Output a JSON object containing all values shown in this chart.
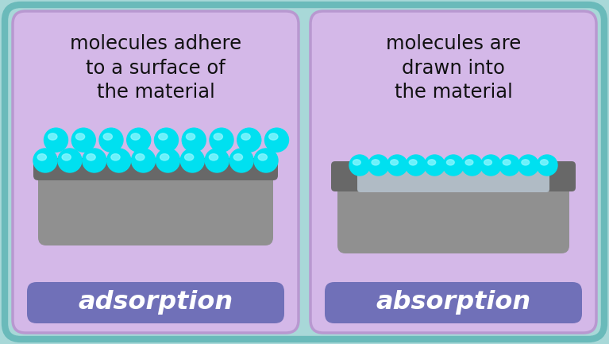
{
  "bg_color": "#a8d8d8",
  "outer_border_color": "#6ababa",
  "card_bg_color": "#d4b8e8",
  "card_border_color": "#b898d0",
  "label_bg_color": "#7070b8",
  "label_text_color": "#ffffff",
  "block_color": "#909090",
  "block_top_color": "#686868",
  "block_inner_color": "#b0b8c0",
  "sphere_color": "#00e0f0",
  "sphere_highlight": "#90f8ff",
  "left_title": "molecules adhere\nto a surface of\nthe material",
  "right_title": "molecules are\ndrawn into\nthe material",
  "left_label": "adsorption",
  "right_label": "absorption",
  "figsize": [
    7.67,
    4.33
  ],
  "dpi": 100
}
